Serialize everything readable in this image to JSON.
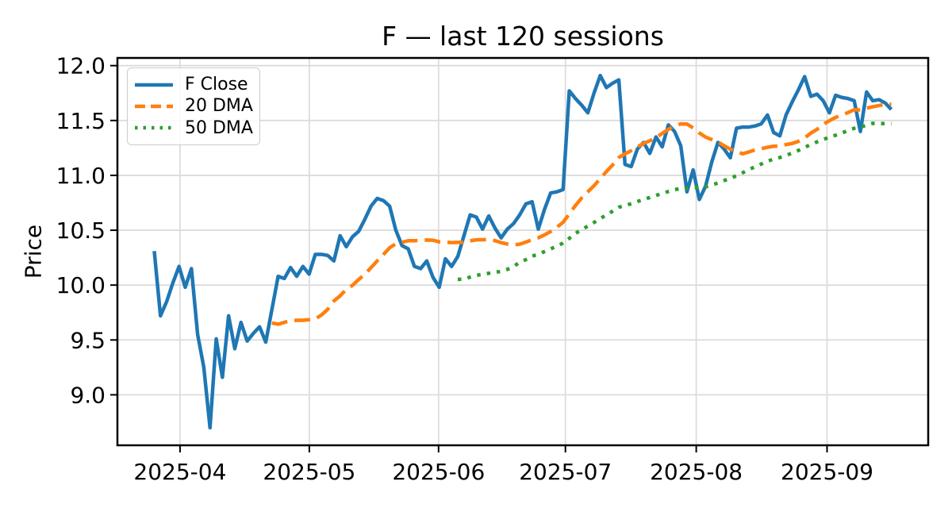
{
  "title": "F — last 120 sessions",
  "ylabel": "Price",
  "legend": [
    {
      "label": "F Close",
      "color": "#1f77b4",
      "style": "solid"
    },
    {
      "label": "20 DMA",
      "color": "#ff7f0e",
      "style": "dashed"
    },
    {
      "label": "50 DMA",
      "color": "#2ca02c",
      "style": "dotted"
    }
  ],
  "colors": {
    "close": "#1f77b4",
    "dma20": "#ff7f0e",
    "dma50": "#2ca02c",
    "grid": "#dcdcdc",
    "spine": "#000000",
    "text": "#000000"
  },
  "chart_data": {
    "type": "line",
    "title": "F — last 120 sessions",
    "xlabel": "",
    "ylabel": "Price",
    "n_sessions": 120,
    "grid": true,
    "legend_position": "upper-left",
    "ylim": [
      8.54,
      12.07
    ],
    "xlim_sessions": [
      -5.95,
      124.95
    ],
    "y_ticks": [
      "12.0",
      "11.5",
      "11.0",
      "10.5",
      "10.0",
      "9.5",
      "9.0"
    ],
    "x_ticks": [
      {
        "label": "2025-04",
        "session": 4.16
      },
      {
        "label": "2025-05",
        "session": 25.03
      },
      {
        "label": "2025-06",
        "session": 45.9
      },
      {
        "label": "2025-07",
        "session": 66.38
      },
      {
        "label": "2025-08",
        "session": 87.5
      },
      {
        "label": "2025-09",
        "session": 108.62
      }
    ],
    "series": [
      {
        "name": "F Close",
        "color": "#1f77b4",
        "line": "solid",
        "values": [
          10.31,
          9.72,
          9.85,
          10.02,
          10.17,
          9.98,
          10.15,
          9.55,
          9.25,
          8.7,
          9.51,
          9.16,
          9.72,
          9.42,
          9.66,
          9.49,
          9.56,
          9.62,
          9.48,
          9.78,
          10.08,
          10.06,
          10.16,
          10.08,
          10.17,
          10.1,
          10.28,
          10.28,
          10.27,
          10.22,
          10.45,
          10.35,
          10.44,
          10.49,
          10.6,
          10.72,
          10.79,
          10.77,
          10.72,
          10.5,
          10.36,
          10.33,
          10.17,
          10.15,
          10.22,
          10.07,
          9.98,
          10.24,
          10.17,
          10.26,
          10.45,
          10.64,
          10.62,
          10.51,
          10.63,
          10.52,
          10.43,
          10.51,
          10.56,
          10.64,
          10.74,
          10.76,
          10.51,
          10.69,
          10.84,
          10.85,
          10.87,
          11.77,
          11.7,
          11.64,
          11.57,
          11.75,
          11.91,
          11.8,
          11.84,
          11.87,
          11.1,
          11.08,
          11.24,
          11.3,
          11.2,
          11.35,
          11.26,
          11.46,
          11.4,
          11.27,
          10.85,
          11.05,
          10.78,
          10.9,
          11.12,
          11.3,
          11.24,
          11.16,
          11.43,
          11.44,
          11.44,
          11.45,
          11.47,
          11.55,
          11.39,
          11.36,
          11.55,
          11.67,
          11.78,
          11.9,
          11.72,
          11.74,
          11.68,
          11.57,
          11.73,
          11.71,
          11.7,
          11.68,
          11.4,
          11.76,
          11.68,
          11.69,
          11.66,
          11.6
        ]
      },
      {
        "name": "20 DMA",
        "color": "#ff7f0e",
        "line": "dashed",
        "derived": "rolling_mean_of_close",
        "window": 20
      },
      {
        "name": "50 DMA",
        "color": "#2ca02c",
        "line": "dotted",
        "derived": "rolling_mean_of_close",
        "window": 50
      }
    ]
  }
}
